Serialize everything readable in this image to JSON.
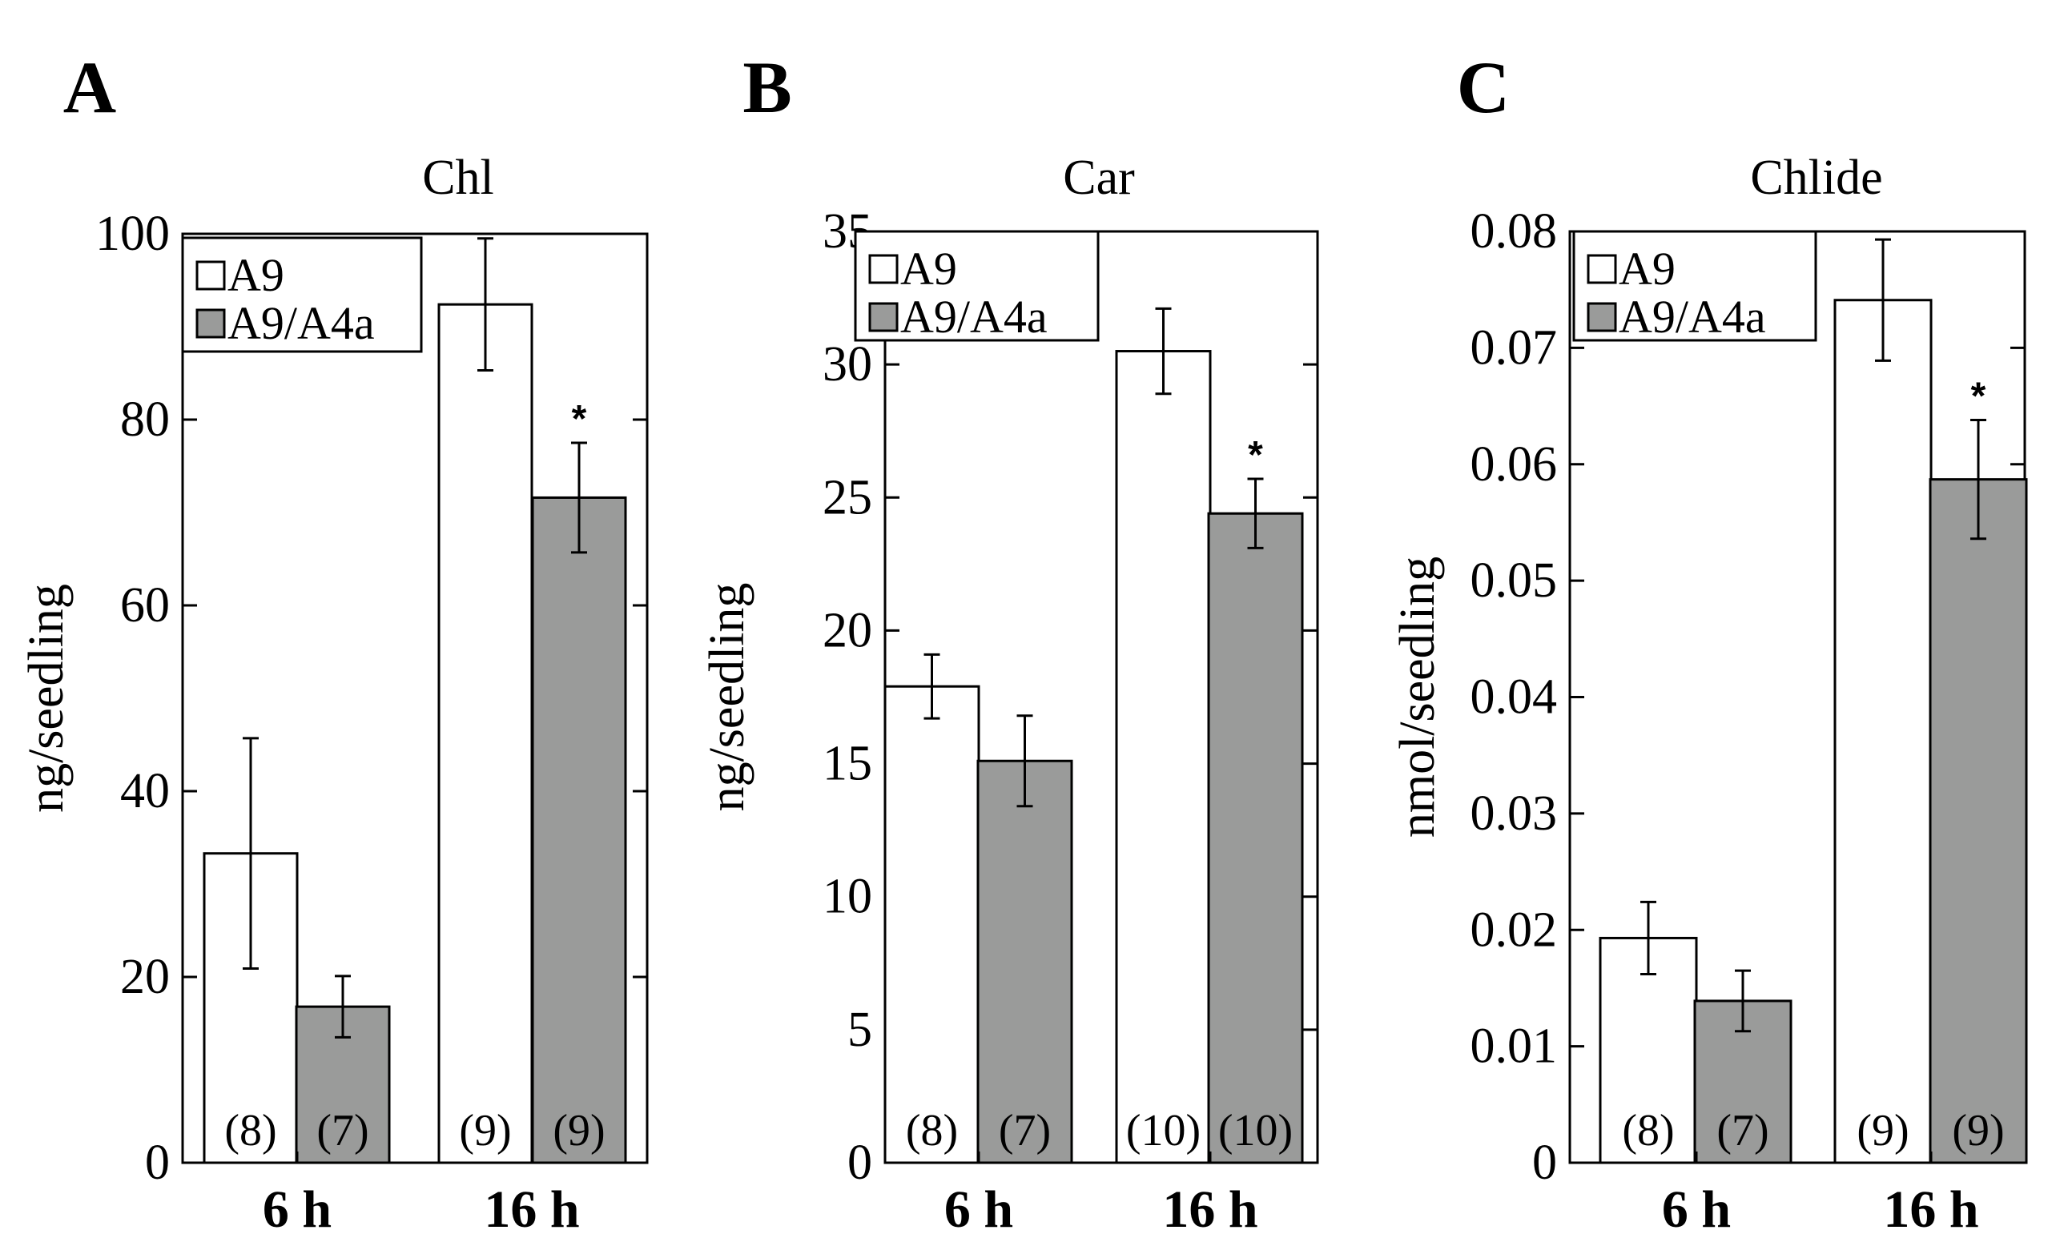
{
  "colors": {
    "A9": "#ffffff",
    "A9/A4a": "#9a9b9a",
    "stroke": "#000000"
  },
  "chart_data": [
    {
      "panel": "A",
      "type": "bar",
      "title": "Chl",
      "ylabel": "ng/seedling",
      "ylim": [
        0,
        100
      ],
      "yticks": [
        0,
        20,
        40,
        60,
        80,
        100
      ],
      "tick_labels": [
        "0",
        "20",
        "40",
        "60",
        "80",
        "100"
      ],
      "categories": [
        "6 h",
        "16 h"
      ],
      "legend": [
        "A9",
        "A9/A4a"
      ],
      "legend_position": "top-left",
      "series": [
        {
          "name": "A9",
          "values": [
            33.3,
            92.4
          ],
          "errors": [
            12.4,
            7.1
          ],
          "n_labels": [
            "(8)",
            "(9)"
          ],
          "stars": [
            "",
            ""
          ]
        },
        {
          "name": "A9/A4a",
          "values": [
            16.8,
            71.6
          ],
          "errors": [
            3.3,
            5.9
          ],
          "n_labels": [
            "(7)",
            "(9)"
          ],
          "stars": [
            "",
            "*"
          ]
        }
      ]
    },
    {
      "panel": "B",
      "type": "bar",
      "title": "Car",
      "ylabel": "ng/seedling",
      "ylim": [
        0,
        35
      ],
      "yticks": [
        0,
        5,
        10,
        15,
        20,
        25,
        30,
        35
      ],
      "tick_labels": [
        "0",
        "5",
        "10",
        "15",
        "20",
        "25",
        "30",
        "35"
      ],
      "categories": [
        "6 h",
        "16 h"
      ],
      "legend": [
        "A9",
        "A9/A4a"
      ],
      "legend_position": "top-left",
      "series": [
        {
          "name": "A9",
          "values": [
            17.9,
            30.5
          ],
          "errors": [
            1.2,
            1.6
          ],
          "n_labels": [
            "(8)",
            "(10)"
          ],
          "stars": [
            "",
            ""
          ]
        },
        {
          "name": "A9/A4a",
          "values": [
            15.1,
            24.4
          ],
          "errors": [
            1.7,
            1.3
          ],
          "n_labels": [
            "(7)",
            "(10)"
          ],
          "stars": [
            "",
            "*"
          ]
        }
      ]
    },
    {
      "panel": "C",
      "type": "bar",
      "title": "Chlide",
      "ylabel": "nmol/seedling",
      "ylim": [
        0,
        0.08
      ],
      "yticks": [
        0,
        0.01,
        0.02,
        0.03,
        0.04,
        0.05,
        0.06,
        0.07,
        0.08
      ],
      "tick_labels": [
        "0",
        "0.01",
        "0.02",
        "0.03",
        "0.04",
        "0.05",
        "0.06",
        "0.07",
        "0.08"
      ],
      "categories": [
        "6 h",
        "16 h"
      ],
      "legend": [
        "A9",
        "A9/A4a"
      ],
      "legend_position": "top-left",
      "series": [
        {
          "name": "A9",
          "values": [
            0.0193,
            0.0741
          ],
          "errors": [
            0.0031,
            0.0052
          ],
          "n_labels": [
            "(8)",
            "(9)"
          ],
          "stars": [
            "",
            ""
          ]
        },
        {
          "name": "A9/A4a",
          "values": [
            0.0139,
            0.0587
          ],
          "errors": [
            0.0026,
            0.0051
          ],
          "n_labels": [
            "(7)",
            "(9)"
          ],
          "stars": [
            "",
            "*"
          ]
        }
      ]
    }
  ]
}
